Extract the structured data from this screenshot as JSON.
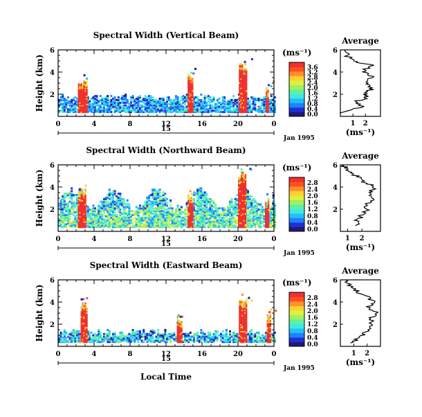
{
  "shared": {
    "x_ticks": [
      "0",
      "4",
      "8",
      "12",
      "16",
      "20",
      "0"
    ],
    "x_tick_values": [
      0,
      4,
      8,
      12,
      16,
      20,
      24
    ],
    "xlim": [
      0,
      24
    ],
    "day_label": "15",
    "date_label": "Jan 1995",
    "height_ticks": [
      "2",
      "4",
      "6"
    ],
    "height_tick_values": [
      2,
      4,
      6
    ],
    "ylim": [
      0,
      6
    ],
    "bottom_xlabel": "Local Time"
  },
  "chart_data": [
    {
      "type": "heatmap",
      "title": "Spectral Width (Vertical Beam)",
      "ylabel": "Height (km)",
      "units": "(ms⁻¹)",
      "colorbar_ticks": [
        "3.6",
        "3.2",
        "2.8",
        "2.4",
        "2.0",
        "1.6",
        "1.2",
        "0.8",
        "0.4",
        "0.0"
      ],
      "colorbar_range": [
        0,
        3.8
      ],
      "colormap": [
        "#201878",
        "#2030d0",
        "#2080ff",
        "#20c0ff",
        "#40e8e0",
        "#60f0a0",
        "#a0f060",
        "#e0f040",
        "#ffd030",
        "#ff9030",
        "#ff5020",
        "#f03030"
      ],
      "features": [
        {
          "kind": "base_layer",
          "x_range": [
            0,
            24
          ],
          "height_range": [
            0.3,
            1.6
          ],
          "value": 1.0
        },
        {
          "kind": "spike",
          "x_range": [
            2.2,
            3.2
          ],
          "height_range": [
            0.3,
            3.2
          ],
          "value": 3.6
        },
        {
          "kind": "spike",
          "x_range": [
            14.4,
            14.9
          ],
          "height_range": [
            0.3,
            3.9
          ],
          "value": 3.6
        },
        {
          "kind": "spike",
          "x_range": [
            20.1,
            20.9
          ],
          "height_range": [
            0.3,
            4.7
          ],
          "value": 3.6
        },
        {
          "kind": "spike",
          "x_range": [
            23.1,
            23.4
          ],
          "height_range": [
            0.3,
            2.8
          ],
          "value": 3.6
        }
      ],
      "average_profile": {
        "title": "Average",
        "xlabel": "(ms⁻¹)",
        "x_ticks": [
          "1",
          "2"
        ],
        "x_tick_values": [
          1,
          2
        ],
        "xlim": [
          0,
          3.2
        ],
        "y_ticks": [
          "2",
          "4",
          "6"
        ],
        "ylim": [
          0,
          6
        ],
        "width": [
          0.2,
          1.8,
          1.0,
          2.1,
          2.0,
          2.5,
          2.1,
          2.6,
          1.8,
          2.6,
          1.0,
          0.5,
          0.3
        ],
        "height": [
          0.3,
          0.9,
          1.3,
          1.6,
          2.0,
          2.5,
          3.0,
          3.6,
          4.1,
          4.6,
          5.0,
          5.5,
          6.0
        ]
      }
    },
    {
      "type": "heatmap",
      "title": "Spectral Width (Northward Beam)",
      "ylabel": "Height (km)",
      "units": "(ms⁻¹)",
      "colorbar_ticks": [
        "2.8",
        "2.4",
        "2.0",
        "1.6",
        "1.2",
        "0.8",
        "0.4",
        "0.0"
      ],
      "colorbar_range": [
        0,
        3.0
      ],
      "colormap": [
        "#201878",
        "#2030d0",
        "#2080ff",
        "#20c0ff",
        "#40e8e0",
        "#60f0a0",
        "#a0f060",
        "#e0f040",
        "#ffd030",
        "#ff9030",
        "#ff5020",
        "#f03030"
      ],
      "features": [
        {
          "kind": "base_layer",
          "x_range": [
            0,
            24
          ],
          "height_range": [
            0.3,
            2.8
          ],
          "value": 1.3
        },
        {
          "kind": "spike",
          "x_range": [
            2.2,
            3.0
          ],
          "height_range": [
            0.3,
            3.8
          ],
          "value": 2.8
        },
        {
          "kind": "spike",
          "x_range": [
            14.4,
            14.9
          ],
          "height_range": [
            0.3,
            3.3
          ],
          "value": 2.8
        },
        {
          "kind": "spike",
          "x_range": [
            20.0,
            20.8
          ],
          "height_range": [
            0.3,
            5.3
          ],
          "value": 2.8
        },
        {
          "kind": "spike",
          "x_range": [
            23.0,
            23.4
          ],
          "height_range": [
            0.3,
            3.0
          ],
          "value": 2.8
        }
      ],
      "average_profile": {
        "title": "Average",
        "xlabel": "(ms⁻¹)",
        "x_ticks": [
          "1",
          "2"
        ],
        "x_tick_values": [
          1,
          2
        ],
        "xlim": [
          0.5,
          3.3
        ],
        "y_ticks": [
          "2",
          "4",
          "6"
        ],
        "ylim": [
          0,
          6
        ],
        "width": [
          1.8,
          1.7,
          2.0,
          2.4,
          2.3,
          2.8,
          2.6,
          3.0,
          2.2,
          1.8,
          1.3,
          0.9,
          0.7
        ],
        "height": [
          0.5,
          1.0,
          1.5,
          2.0,
          2.5,
          3.0,
          3.5,
          4.0,
          4.4,
          4.8,
          5.2,
          5.6,
          6.0
        ]
      }
    },
    {
      "type": "heatmap",
      "title": "Spectral Width (Eastward Beam)",
      "ylabel": "Height (km)",
      "units": "(ms⁻¹)",
      "colorbar_ticks": [
        "2.8",
        "2.4",
        "2.0",
        "1.6",
        "1.2",
        "0.8",
        "0.4",
        "0.0"
      ],
      "colorbar_range": [
        0,
        3.0
      ],
      "colormap": [
        "#201878",
        "#2030d0",
        "#2080ff",
        "#20c0ff",
        "#40e8e0",
        "#60f0a0",
        "#a0f060",
        "#e0f040",
        "#ffd030",
        "#ff9030",
        "#ff5020",
        "#f03030"
      ],
      "features": [
        {
          "kind": "base_layer",
          "x_range": [
            0,
            24
          ],
          "height_range": [
            0.3,
            1.2
          ],
          "value": 0.9
        },
        {
          "kind": "spike",
          "x_range": [
            2.5,
            3.1
          ],
          "height_range": [
            0.3,
            3.9
          ],
          "value": 2.8
        },
        {
          "kind": "spike",
          "x_range": [
            13.2,
            13.7
          ],
          "height_range": [
            0.3,
            2.7
          ],
          "value": 2.8
        },
        {
          "kind": "spike",
          "x_range": [
            20.1,
            20.9
          ],
          "height_range": [
            0.3,
            4.2
          ],
          "value": 2.8
        },
        {
          "kind": "spike",
          "x_range": [
            23.2,
            23.5
          ],
          "height_range": [
            0.3,
            3.0
          ],
          "value": 2.8
        }
      ],
      "average_profile": {
        "title": "Average",
        "xlabel": "(ms⁻¹)",
        "x_ticks": [
          "1",
          "2"
        ],
        "x_tick_values": [
          1,
          2
        ],
        "xlim": [
          0,
          3.0
        ],
        "y_ticks": [
          "2",
          "4",
          "6"
        ],
        "ylim": [
          0,
          6
        ],
        "width": [
          1.0,
          1.4,
          1.9,
          2.5,
          2.2,
          2.7,
          2.0,
          2.6,
          1.9,
          1.2,
          0.8,
          0.4
        ],
        "height": [
          0.3,
          0.8,
          1.3,
          1.9,
          2.5,
          3.0,
          3.5,
          4.0,
          4.5,
          5.0,
          5.4,
          6.0
        ]
      }
    }
  ]
}
